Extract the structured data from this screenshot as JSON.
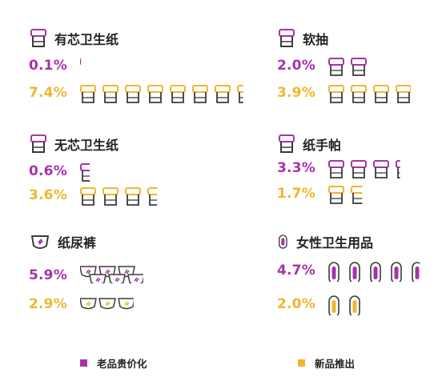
{
  "colors": {
    "old": "#a733a8",
    "new": "#efb62d",
    "outline": "#3b3b3b"
  },
  "legend": {
    "old_label": "老品贵价化",
    "new_label": "新品推出"
  },
  "chart_data": {
    "type": "pictograph",
    "series_names": [
      "老品贵价化",
      "新品推出"
    ],
    "categories": [
      {
        "name": "有芯卫生纸",
        "icon": "toilet-roll-icon",
        "old": 0.1,
        "new": 7.4
      },
      {
        "name": "软抽",
        "icon": "toilet-roll-icon",
        "old": 2.0,
        "new": 3.9
      },
      {
        "name": "无芯卫生纸",
        "icon": "toilet-roll-icon",
        "old": 0.6,
        "new": 3.6
      },
      {
        "name": "纸手帕",
        "icon": "toilet-roll-icon",
        "old": 3.3,
        "new": 1.7
      },
      {
        "name": "纸尿裤",
        "icon": "diaper-icon",
        "old": 5.9,
        "new": 2.9
      },
      {
        "name": "女性卫生用品",
        "icon": "sanitary-pad-icon",
        "old": 4.7,
        "new": 2.0
      }
    ],
    "labels": {
      "old": [
        "0.1%",
        "2.0%",
        "0.6%",
        "3.3%",
        "5.9%",
        "4.7%"
      ],
      "new": [
        "7.4%",
        "3.9%",
        "3.6%",
        "1.7%",
        "2.9%",
        "2.0%"
      ]
    }
  }
}
